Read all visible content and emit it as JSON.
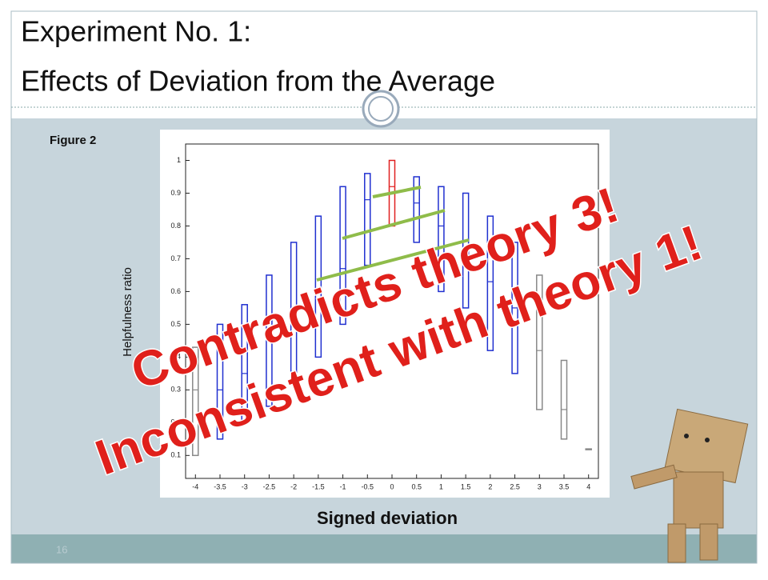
{
  "slide": {
    "title": [
      "Experiment No. 1:",
      "Effects of Deviation from the Average"
    ],
    "figure_label": "Figure 2",
    "page_number": "16",
    "annotations": [
      "Contradicts theory 3!",
      "Inconsistent with theory 1!"
    ]
  },
  "chart_data": {
    "type": "box",
    "x_label": "Signed deviation",
    "y_label": "Helpfulness ratio",
    "x": [
      -4,
      -3.5,
      -3,
      -2.5,
      -2,
      -1.5,
      -1,
      -0.5,
      0,
      0.5,
      1,
      1.5,
      2,
      2.5,
      3,
      3.5,
      4
    ],
    "q1": [
      0.1,
      0.15,
      0.2,
      0.25,
      0.33,
      0.4,
      0.5,
      0.68,
      0.8,
      0.75,
      0.6,
      0.55,
      0.42,
      0.35,
      0.24,
      0.15,
      0.12
    ],
    "median": [
      0.3,
      0.3,
      0.35,
      0.45,
      0.5,
      0.6,
      0.67,
      0.88,
      0.92,
      0.87,
      0.8,
      0.7,
      0.63,
      0.55,
      0.42,
      0.24,
      0.12
    ],
    "q3": [
      0.43,
      0.5,
      0.56,
      0.65,
      0.75,
      0.83,
      0.92,
      0.96,
      1.0,
      0.95,
      0.92,
      0.9,
      0.83,
      0.75,
      0.65,
      0.39,
      0.12
    ],
    "colors": [
      "#888888",
      "#2030d0",
      "#2030d0",
      "#2030d0",
      "#2030d0",
      "#2030d0",
      "#2030d0",
      "#2030d0",
      "#e02020",
      "#2030d0",
      "#2030d0",
      "#2030d0",
      "#2030d0",
      "#2030d0",
      "#888888",
      "#888888",
      "#888888"
    ],
    "xlim": [
      -4.2,
      4.2
    ],
    "xticks": [
      -4,
      -3.5,
      -3,
      -2.5,
      -2,
      -1.5,
      -1,
      -0.5,
      0,
      0.5,
      1,
      1.5,
      2,
      2.5,
      3,
      3.5,
      4
    ],
    "ylim": [
      0.03,
      1.05
    ],
    "yticks": [
      0.1,
      0.2,
      0.3,
      0.4,
      0.5,
      0.6,
      0.7,
      0.8,
      0.9,
      1
    ]
  }
}
